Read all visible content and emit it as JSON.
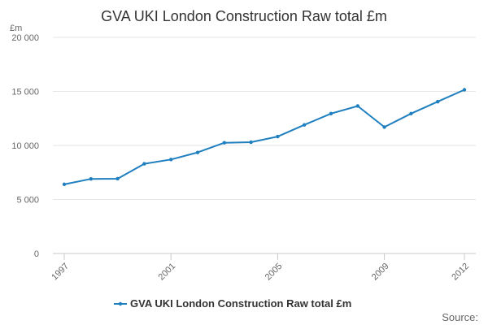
{
  "chart_data": {
    "type": "line",
    "title": "GVA UKI London Construction Raw total £m",
    "ylabel": "£m",
    "xlabel": "",
    "ylim": [
      0,
      20000
    ],
    "yticks": [
      0,
      5000,
      10000,
      15000,
      20000
    ],
    "ytick_labels": [
      "0",
      "5 000",
      "10 000",
      "15 000",
      "20 000"
    ],
    "xlim": [
      1997,
      2012
    ],
    "xticks": [
      1997,
      2001,
      2005,
      2009,
      2012
    ],
    "xtick_labels": [
      "1997",
      "2001",
      "2005",
      "2009",
      "2012"
    ],
    "grid": true,
    "legend_position": "bottom",
    "series": [
      {
        "name": "GVA UKI London Construction Raw total £m",
        "color": "#1f7fbf",
        "x": [
          1997,
          1998,
          1999,
          2000,
          2001,
          2002,
          2003,
          2004,
          2005,
          2006,
          2007,
          2008,
          2009,
          2010,
          2011,
          2012
        ],
        "values": [
          6400,
          6900,
          6920,
          8300,
          8700,
          9350,
          10250,
          10300,
          10820,
          11900,
          12950,
          13650,
          11700,
          12950,
          14050,
          15150
        ]
      }
    ],
    "source_label": "Source:"
  }
}
